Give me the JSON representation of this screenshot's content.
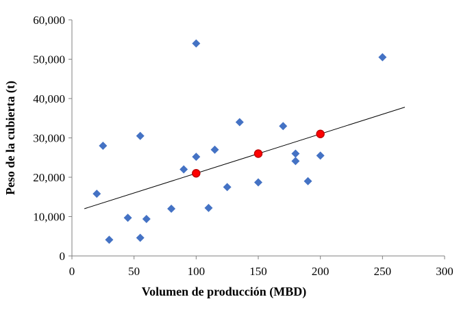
{
  "chart_data": {
    "type": "scatter",
    "xlabel": "Volumen de producción (MBD)",
    "ylabel": "Peso de la cubierta (t)",
    "xlim": [
      0,
      300
    ],
    "ylim": [
      0,
      60000
    ],
    "x_ticks": [
      0,
      50,
      100,
      150,
      200,
      250,
      300
    ],
    "x_tick_labels": [
      "0",
      "50",
      "100",
      "150",
      "200",
      "250",
      "300"
    ],
    "y_ticks": [
      0,
      10000,
      20000,
      30000,
      40000,
      50000,
      60000
    ],
    "y_tick_labels": [
      "0",
      "10,000",
      "20,000",
      "30,000",
      "40,000",
      "50,000",
      "60,000"
    ],
    "grid": false,
    "series": [
      {
        "marker": "diamond",
        "color": "#4472C4",
        "points": [
          {
            "x": 20,
            "y": 15800
          },
          {
            "x": 25,
            "y": 28000
          },
          {
            "x": 30,
            "y": 4100
          },
          {
            "x": 45,
            "y": 9700
          },
          {
            "x": 55,
            "y": 4600
          },
          {
            "x": 55,
            "y": 30500
          },
          {
            "x": 60,
            "y": 9400
          },
          {
            "x": 80,
            "y": 12000
          },
          {
            "x": 90,
            "y": 22000
          },
          {
            "x": 100,
            "y": 25200
          },
          {
            "x": 100,
            "y": 54000
          },
          {
            "x": 110,
            "y": 12200
          },
          {
            "x": 115,
            "y": 27000
          },
          {
            "x": 125,
            "y": 17500
          },
          {
            "x": 135,
            "y": 34000
          },
          {
            "x": 150,
            "y": 18700
          },
          {
            "x": 170,
            "y": 33000
          },
          {
            "x": 180,
            "y": 26000
          },
          {
            "x": 180,
            "y": 24100
          },
          {
            "x": 190,
            "y": 19000
          },
          {
            "x": 200,
            "y": 25500
          },
          {
            "x": 250,
            "y": 50500
          }
        ]
      },
      {
        "marker": "circle",
        "color": "#FF0000",
        "edge_color": "#C00000",
        "points": [
          {
            "x": 100,
            "y": 21000
          },
          {
            "x": 150,
            "y": 26000
          },
          {
            "x": 200,
            "y": 31000
          }
        ]
      }
    ],
    "trendline": {
      "color": "#000000",
      "x": [
        10,
        268
      ],
      "y": [
        12000,
        37800
      ]
    }
  }
}
